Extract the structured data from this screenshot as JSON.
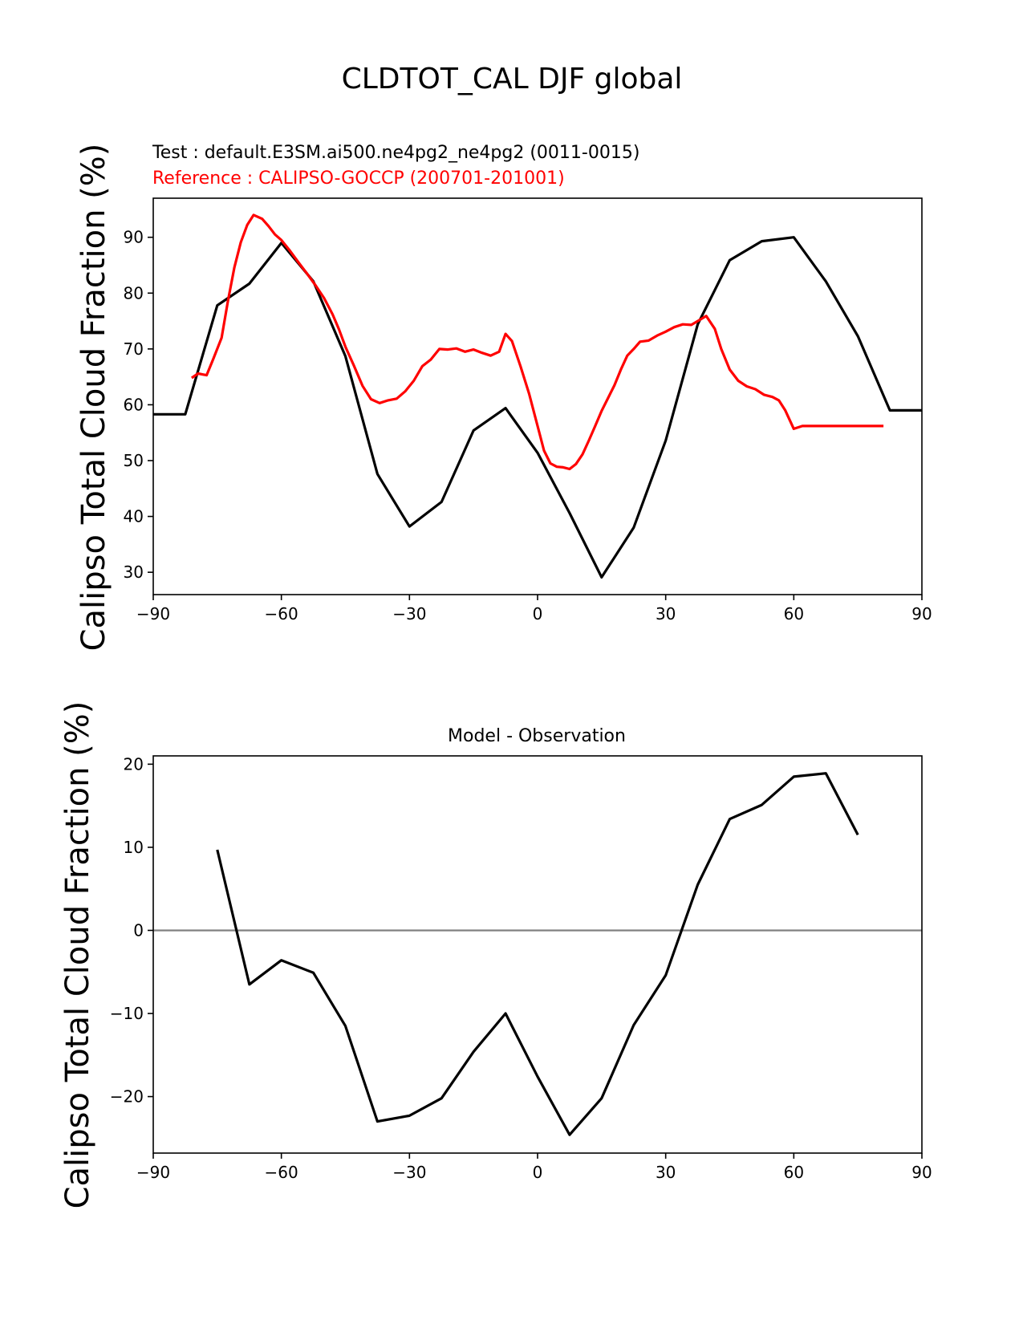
{
  "figure_title": "CLDTOT_CAL DJF global",
  "chart_data": [
    {
      "type": "line",
      "test_label": "Test : default.E3SM.ai500.ne4pg2_ne4pg2 (0011-0015)",
      "ref_label": "Reference : CALIPSO-GOCCP (200701-201001)",
      "ylabel": "Calipso Total Cloud Fraction (%)",
      "xlim": [
        -90,
        90
      ],
      "ylim": [
        26,
        97
      ],
      "xticks": [
        -90,
        -60,
        -30,
        0,
        30,
        60,
        90
      ],
      "xtick_labels": [
        "−90",
        "−60",
        "−30",
        "0",
        "30",
        "60",
        "90"
      ],
      "yticks": [
        30,
        40,
        50,
        60,
        70,
        80,
        90
      ],
      "series": [
        {
          "name": "Test : default.E3SM.ai500.ne4pg2_ne4pg2 (0011-0015)",
          "color": "#000000",
          "x": [
            -90,
            -82.5,
            -75,
            -67.5,
            -60,
            -52.5,
            -45,
            -37.5,
            -30,
            -22.5,
            -15,
            -7.5,
            0,
            7.5,
            15,
            22.5,
            30,
            37.5,
            45,
            52.5,
            60,
            67.5,
            75,
            82.5,
            90
          ],
          "y": [
            58.3,
            58.3,
            77.8,
            81.7,
            89.0,
            82.1,
            68.7,
            47.6,
            38.2,
            42.6,
            55.4,
            59.4,
            51.4,
            40.6,
            29.1,
            38.0,
            53.6,
            74.4,
            85.9,
            89.3,
            90.0,
            82.1,
            72.3,
            59.0,
            59.0
          ]
        },
        {
          "name": "Reference : CALIPSO-GOCCP (200701-201001)",
          "color": "#ff0000",
          "x": [
            -81,
            -79.5,
            -77.5,
            -76,
            -74,
            -72.5,
            -71,
            -69.5,
            -68,
            -66.5,
            -64.5,
            -63,
            -61.5,
            -60,
            -58,
            -56,
            -54,
            -52,
            -50,
            -48,
            -46.5,
            -45,
            -43,
            -41,
            -39,
            -37,
            -35,
            -33,
            -31,
            -29,
            -27,
            -25,
            -23,
            -21,
            -19,
            -17,
            -15,
            -13,
            -11,
            -9,
            -7.5,
            -6,
            -4,
            -2,
            0,
            1.5,
            3,
            4.5,
            6,
            7.5,
            9,
            10.5,
            12,
            13.5,
            15,
            16.5,
            18,
            19.5,
            21,
            22.5,
            24,
            26,
            28,
            30,
            32,
            34,
            36,
            37.5,
            39.5,
            41.5,
            43,
            45,
            47,
            49,
            51,
            53,
            55,
            56.5,
            58,
            60,
            62,
            63.5,
            65,
            66.5,
            68,
            70,
            72,
            74,
            75.5,
            77,
            79,
            81
          ],
          "y": [
            64.8,
            65.6,
            65.3,
            68.1,
            72.0,
            78.6,
            84.6,
            89.1,
            92.2,
            94.0,
            93.3,
            92.0,
            90.5,
            89.5,
            87.6,
            85.5,
            83.5,
            81.4,
            79.1,
            76.2,
            73.5,
            70.4,
            67.0,
            63.4,
            61.0,
            60.3,
            60.8,
            61.1,
            62.4,
            64.3,
            66.9,
            68.1,
            70.0,
            69.9,
            70.1,
            69.5,
            69.9,
            69.3,
            68.8,
            69.5,
            72.7,
            71.4,
            66.9,
            62.0,
            56.2,
            51.8,
            49.5,
            48.9,
            48.8,
            48.5,
            49.4,
            51.1,
            53.6,
            56.2,
            58.9,
            61.2,
            63.5,
            66.3,
            68.8,
            70.0,
            71.3,
            71.5,
            72.4,
            73.1,
            73.9,
            74.4,
            74.3,
            75.0,
            75.9,
            73.6,
            70.0,
            66.3,
            64.3,
            63.3,
            62.8,
            61.8,
            61.4,
            60.8,
            59.0,
            55.7,
            56.2,
            56.2,
            56.2,
            56.2,
            56.2,
            56.2,
            56.2,
            56.2,
            56.2,
            56.2,
            56.2,
            56.2
          ],
          "x_end": 81
        }
      ]
    },
    {
      "type": "line",
      "title": "Model - Observation",
      "ylabel": "Calipso Total Cloud Fraction (%)",
      "xlim": [
        -90,
        90
      ],
      "ylim": [
        -26.8,
        21
      ],
      "xticks": [
        -90,
        -60,
        -30,
        0,
        30,
        60,
        90
      ],
      "xtick_labels": [
        "−90",
        "−60",
        "−30",
        "0",
        "30",
        "60",
        "90"
      ],
      "yticks": [
        -20,
        -10,
        0,
        10,
        20
      ],
      "ytick_labels": [
        "−20",
        "−10",
        "0",
        "10",
        "20"
      ],
      "zero_line_color": "#808080",
      "series": [
        {
          "name": "",
          "color": "#000000",
          "x": [
            -75,
            -67.5,
            -60,
            -52.5,
            -45,
            -37.5,
            -30,
            -22.5,
            -15,
            -7.5,
            0,
            7.5,
            15,
            22.5,
            30,
            37.5,
            45,
            52.5,
            60,
            67.5,
            75
          ],
          "y": [
            9.7,
            -6.5,
            -3.6,
            -5.1,
            -11.5,
            -23.0,
            -22.3,
            -20.2,
            -14.6,
            -10.0,
            -17.6,
            -24.6,
            -20.2,
            -11.4,
            -5.4,
            5.5,
            13.4,
            15.1,
            18.5,
            18.9,
            11.5
          ]
        }
      ]
    }
  ]
}
